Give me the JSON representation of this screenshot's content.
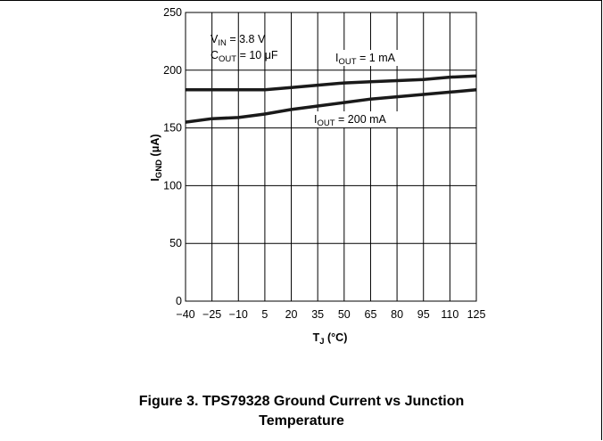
{
  "chart_data": {
    "type": "line",
    "title": "",
    "xlabel_main": "T",
    "xlabel_sub": "J",
    "xlabel_unit": " (°C)",
    "ylabel_main": "I",
    "ylabel_sub": "GND",
    "ylabel_unit": " (μA)",
    "xlim": [
      -40,
      125
    ],
    "ylim": [
      0,
      250
    ],
    "x_ticks": [
      -40,
      -25,
      -10,
      5,
      20,
      35,
      50,
      65,
      80,
      95,
      110,
      125
    ],
    "x_tick_labels": [
      "−40",
      "−25",
      "−10",
      "5",
      "20",
      "35",
      "50",
      "65",
      "80",
      "95",
      "110",
      "125"
    ],
    "y_ticks": [
      0,
      50,
      100,
      150,
      200,
      250
    ],
    "y_tick_labels": [
      "0",
      "50",
      "100",
      "150",
      "200",
      "250"
    ],
    "grid": true,
    "series": [
      {
        "name": "IOUT = 1 mA",
        "x": [
          -40,
          -25,
          -10,
          5,
          20,
          35,
          50,
          65,
          80,
          95,
          110,
          125
        ],
        "values": [
          183,
          183,
          183,
          183,
          185,
          187,
          189,
          190,
          191,
          192,
          194,
          195
        ]
      },
      {
        "name": "IOUT = 200 mA",
        "x": [
          -40,
          -25,
          -10,
          5,
          20,
          35,
          50,
          65,
          80,
          95,
          110,
          125
        ],
        "values": [
          155,
          158,
          159,
          162,
          166,
          169,
          172,
          175,
          177,
          179,
          181,
          183
        ]
      }
    ],
    "annotations": {
      "vin": {
        "main": "V",
        "sub": "IN",
        "rest": " = 3.8 V"
      },
      "cout": {
        "main": "C",
        "sub": "OUT",
        "rest": " = 10 μF"
      },
      "label_1ma": {
        "main": "I",
        "sub": "OUT",
        "rest": " = 1 mA"
      },
      "label_200ma": {
        "main": "I",
        "sub": "OUT",
        "rest": " = 200 mA"
      }
    }
  },
  "caption": "Figure 3. TPS79328 Ground Current vs Junction Temperature",
  "colors": {
    "line": "#1a1a1a",
    "grid": "#000000",
    "background": "#ffffff"
  }
}
